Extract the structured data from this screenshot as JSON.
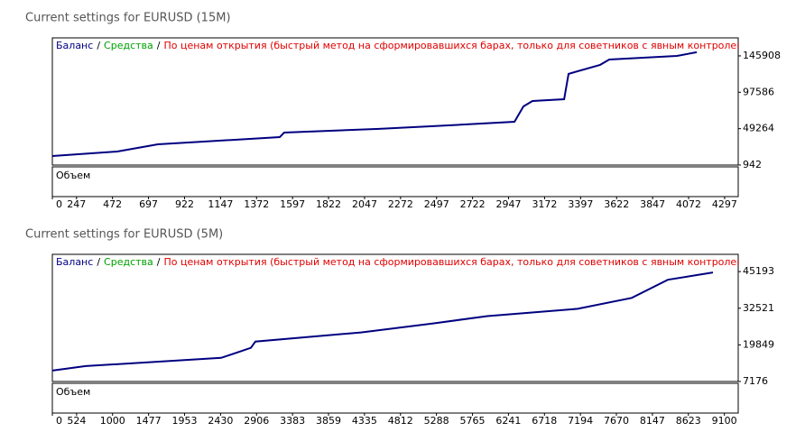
{
  "chart_data": [
    {
      "type": "line",
      "title": "Current settings for EURUSD (15M)",
      "legend": {
        "balance": "Баланс",
        "separator": "/",
        "equity": "Средства",
        "mode": "По ценам открытия (быстрый метод на сформировавшихся барах, только для советников с явным контролем о"
      },
      "volume_label": "Объем",
      "x": [
        96,
        502,
        756,
        1517,
        1545,
        2138,
        2476,
        2984,
        3040,
        3096,
        3294,
        3322,
        3519,
        3576,
        3999,
        4123
      ],
      "series": [
        {
          "name": "Баланс",
          "color": "#000080",
          "values": [
            12900,
            18900,
            28500,
            38100,
            44100,
            49000,
            52500,
            58400,
            78800,
            86000,
            88400,
            122000,
            134000,
            141000,
            145900,
            150700
          ]
        }
      ],
      "xlim": [
        96,
        4382
      ],
      "xticks": [
        0,
        247,
        472,
        697,
        922,
        1147,
        1372,
        1597,
        1822,
        2047,
        2272,
        2497,
        2722,
        2947,
        3172,
        3397,
        3622,
        3847,
        4072,
        4297
      ],
      "ylim": [
        942,
        169800
      ],
      "yticks": [
        942,
        49264,
        97586,
        145908
      ]
    },
    {
      "type": "line",
      "title": "Current settings for EURUSD (5M)",
      "legend": {
        "balance": "Баланс",
        "separator": "/",
        "equity": "Средства",
        "mode": "По ценам открытия (быстрый метод на сформировавшихся барах, только для советников с явным контролем о"
      },
      "volume_label": "Объем",
      "x": [
        203,
        645,
        2437,
        2832,
        2891,
        4289,
        5245,
        5962,
        7157,
        7873,
        8351,
        8949
      ],
      "series": [
        {
          "name": "Баланс",
          "color": "#000080",
          "values": [
            10950,
            12520,
            15340,
            18800,
            21000,
            24140,
            27280,
            29800,
            32310,
            36080,
            42370,
            44880
          ]
        }
      ],
      "xlim": [
        203,
        9283
      ],
      "xticks": [
        0,
        524,
        1000,
        1477,
        1953,
        2430,
        2906,
        3383,
        3859,
        4335,
        4812,
        5288,
        5765,
        6241,
        6718,
        7194,
        7670,
        8147,
        8623,
        9100
      ],
      "ylim": [
        7176,
        51160
      ],
      "yticks": [
        7176,
        19849,
        32521,
        45193
      ]
    }
  ]
}
